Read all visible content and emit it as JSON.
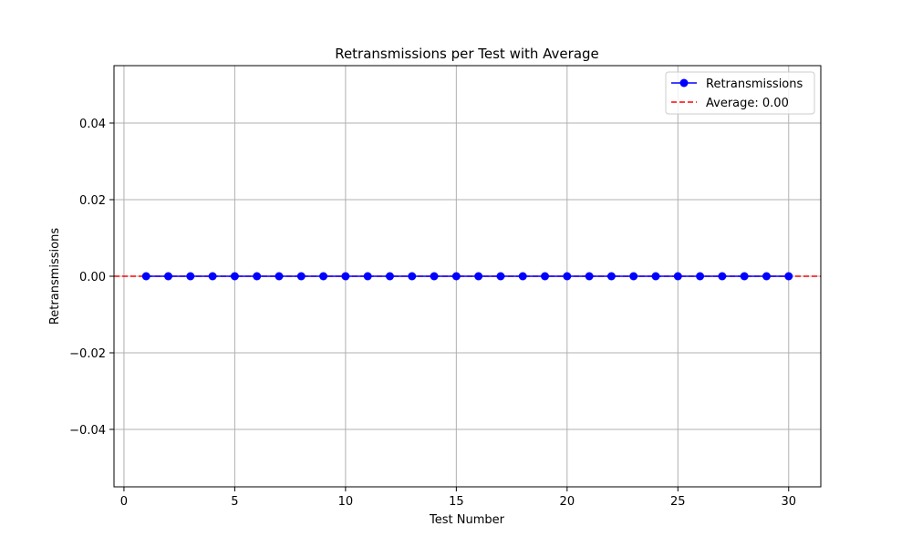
{
  "chart_data": {
    "type": "line",
    "title": "Retransmissions per Test with Average",
    "xlabel": "Test Number",
    "ylabel": "Retransmissions",
    "xlim": [
      -0.45,
      31.45
    ],
    "ylim": [
      -0.055,
      0.055
    ],
    "xticks": [
      0,
      5,
      10,
      15,
      20,
      25,
      30
    ],
    "xtick_labels": [
      "0",
      "5",
      "10",
      "15",
      "20",
      "25",
      "30"
    ],
    "yticks": [
      -0.04,
      -0.02,
      0.0,
      0.02,
      0.04
    ],
    "ytick_labels": [
      "−0.04",
      "−0.02",
      "0.00",
      "0.02",
      "0.04"
    ],
    "grid": true,
    "legend_position": "top-right",
    "series": [
      {
        "name": "Retransmissions",
        "color": "#0000ff",
        "style": "solid-line-with-circle-markers",
        "x": [
          1,
          2,
          3,
          4,
          5,
          6,
          7,
          8,
          9,
          10,
          11,
          12,
          13,
          14,
          15,
          16,
          17,
          18,
          19,
          20,
          21,
          22,
          23,
          24,
          25,
          26,
          27,
          28,
          29,
          30
        ],
        "y": [
          0,
          0,
          0,
          0,
          0,
          0,
          0,
          0,
          0,
          0,
          0,
          0,
          0,
          0,
          0,
          0,
          0,
          0,
          0,
          0,
          0,
          0,
          0,
          0,
          0,
          0,
          0,
          0,
          0,
          0
        ]
      }
    ],
    "reference_lines": [
      {
        "name": "Average: 0.00",
        "y": 0.0,
        "color": "#ff0000",
        "style": "dashed"
      }
    ]
  }
}
